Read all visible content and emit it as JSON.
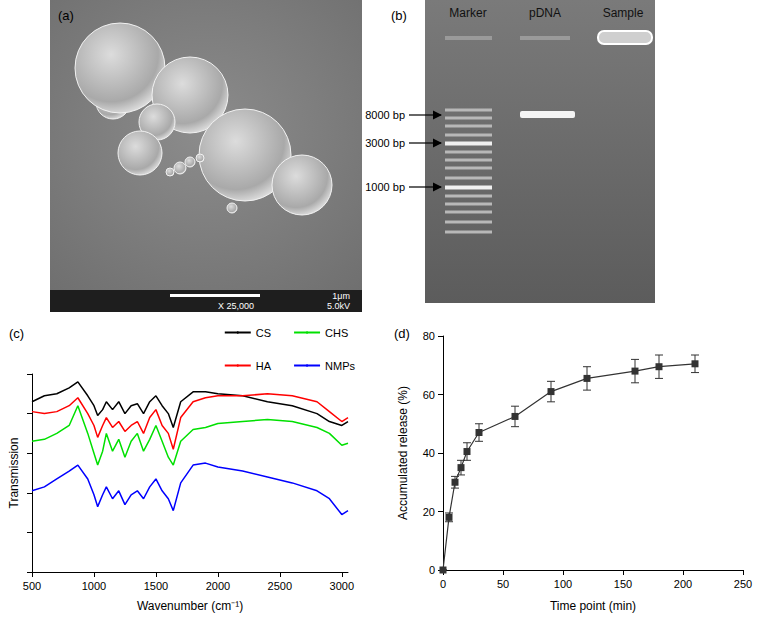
{
  "panel_a": {
    "label": "(a)",
    "scale_bar": "1μm",
    "magnification": "X 25,000",
    "voltage": "5.0kV"
  },
  "panel_b": {
    "label": "(b)",
    "lanes": [
      "Marker",
      "pDNA",
      "Sample"
    ],
    "marker_labels": [
      "8000 bp",
      "3000 bp",
      "1000 bp"
    ]
  },
  "chart_data": [
    {
      "type": "line",
      "title": "(c)",
      "x_label": "Wavenumber (cm⁻¹)",
      "y_label": "Transmission",
      "x": [
        500,
        600,
        700,
        800,
        870,
        950,
        1000,
        1030,
        1070,
        1100,
        1150,
        1200,
        1250,
        1300,
        1350,
        1400,
        1450,
        1500,
        1550,
        1600,
        1640,
        1700,
        1800,
        1900,
        2000,
        2200,
        2400,
        2600,
        2800,
        2900,
        3000,
        3050
      ],
      "series": [
        {
          "name": "CS",
          "color": "#000000",
          "values": [
            86,
            89,
            90,
            93,
            96,
            89,
            84,
            79,
            82,
            86,
            82,
            86,
            80,
            84,
            85,
            80,
            86,
            89,
            84,
            80,
            73,
            86,
            91,
            91,
            90,
            89,
            86,
            84,
            80,
            76,
            74,
            76
          ]
        },
        {
          "name": "HA",
          "color": "#ff0000",
          "values": [
            81,
            80,
            81,
            84,
            88,
            80,
            74,
            68,
            74,
            78,
            73,
            76,
            71,
            74,
            76,
            70,
            78,
            82,
            74,
            70,
            62,
            78,
            86,
            88,
            89,
            89,
            90,
            89,
            86,
            81,
            76,
            78
          ]
        },
        {
          "name": "CHS",
          "color": "#00e000",
          "values": [
            66,
            67,
            70,
            74,
            84,
            70,
            60,
            54,
            61,
            70,
            61,
            67,
            58,
            66,
            70,
            61,
            67,
            74,
            66,
            58,
            54,
            66,
            72,
            73,
            75,
            76,
            77,
            76,
            73,
            70,
            64,
            65
          ]
        },
        {
          "name": "NMPs",
          "color": "#0000ff",
          "values": [
            41,
            43,
            47,
            51,
            54,
            47,
            39,
            33,
            39,
            43,
            37,
            41,
            34,
            39,
            41,
            37,
            43,
            47,
            41,
            37,
            31,
            45,
            54,
            55,
            53,
            51,
            48,
            45,
            41,
            37,
            29,
            31
          ]
        }
      ],
      "xlim": [
        500,
        3050
      ],
      "xticks": [
        500,
        1000,
        1500,
        2000,
        2500,
        3000
      ],
      "ylim": [
        0,
        100
      ],
      "yticks": [
        0,
        20,
        40,
        60,
        80,
        100
      ],
      "tick_labels": "x",
      "legend": "top-right",
      "grid": false
    },
    {
      "type": "line",
      "title": "(d)",
      "x_label": "Time point (min)",
      "y_label": "Accumulated release (%)",
      "x": [
        0,
        5,
        10,
        15,
        20,
        30,
        60,
        90,
        120,
        160,
        180,
        210
      ],
      "values": [
        0,
        18,
        30,
        35,
        40.5,
        47,
        52.5,
        61,
        65.5,
        68,
        69.5,
        70.5
      ],
      "errors": [
        0,
        1.5,
        2,
        2.5,
        3,
        3,
        3.5,
        3.5,
        4,
        4,
        4,
        3
      ],
      "color": "#333333",
      "marker": "square",
      "xlim": [
        0,
        250
      ],
      "xticks": [
        0,
        50,
        100,
        150,
        200,
        250
      ],
      "ylim": [
        0,
        80
      ],
      "yticks": [
        0,
        20,
        40,
        60,
        80
      ],
      "grid": false
    }
  ]
}
